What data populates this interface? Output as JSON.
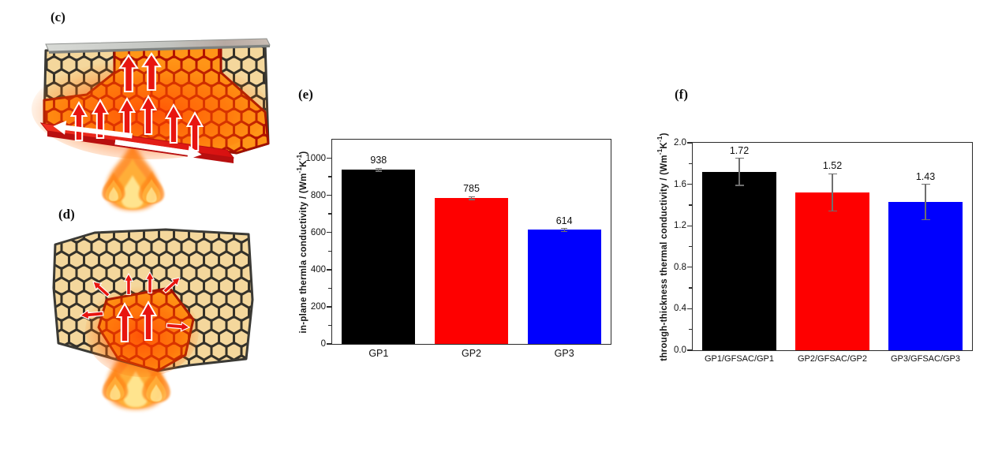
{
  "panels": {
    "c": "(c)",
    "d": "(d)",
    "e": "(e)",
    "f": "(f)"
  },
  "illustrations": {
    "c_icons": [
      "top-plate",
      "graphene-foam-block",
      "hot-zone",
      "heat-flow-arrows",
      "in-plane-spread-arrows",
      "flame"
    ],
    "d_icons": [
      "graphene-foam-block",
      "hot-zone",
      "radiating-heat-arrows",
      "flame"
    ]
  },
  "chart_data": [
    {
      "panel": "e",
      "type": "bar",
      "categories": [
        "GP1",
        "GP2",
        "GP3"
      ],
      "values": [
        938,
        785,
        614
      ],
      "errors": [
        8,
        8,
        8
      ],
      "value_labels": [
        "938",
        "785",
        "614"
      ],
      "bar_colors": [
        "#000000",
        "#fe0000",
        "#0000fe"
      ],
      "title": "",
      "xlabel": "",
      "ylabel": "in-plane thermla conductivity / (Wm⁻¹K⁻¹)",
      "ylabel_parts": {
        "pre": "in-plane thermla conductivity / (Wm",
        "sup1": "-1",
        "mid": "K",
        "sup2": "-1",
        "post": ")"
      },
      "ylim": [
        0,
        1100
      ],
      "ytick_values": [
        0,
        200,
        400,
        600,
        800,
        1000
      ],
      "ytick_labels": [
        "0",
        "200",
        "400",
        "600",
        "800",
        "1000"
      ],
      "ytick_step": 200,
      "minor_tick_step": 100,
      "grid": false,
      "legend": null
    },
    {
      "panel": "f",
      "type": "bar",
      "categories": [
        "GP1/GFSAC/GP1",
        "GP2/GFSAC/GP2",
        "GP3/GFSAC/GP3"
      ],
      "values": [
        1.72,
        1.52,
        1.43
      ],
      "errors": [
        0.13,
        0.18,
        0.17
      ],
      "value_labels": [
        "1.72",
        "1.52",
        "1.43"
      ],
      "bar_colors": [
        "#000000",
        "#fe0000",
        "#0000fe"
      ],
      "title": "",
      "xlabel": "",
      "ylabel": "through-thickness thermal conductivity / (Wm⁻¹K⁻¹)",
      "ylabel_parts": {
        "pre": "through-thickness thermal conductivity / (Wm",
        "sup1": "-1",
        "mid": "K",
        "sup2": "-1",
        "post": ")"
      },
      "ylim": [
        0,
        2.0
      ],
      "ytick_values": [
        0,
        0.4,
        0.8,
        1.2,
        1.6,
        2.0
      ],
      "ytick_labels": [
        "0.0",
        "0.4",
        "0.8",
        "1.2",
        "1.6",
        "2.0"
      ],
      "ytick_step": 0.4,
      "minor_tick_step": 0.2,
      "grid": false,
      "legend": null
    }
  ]
}
